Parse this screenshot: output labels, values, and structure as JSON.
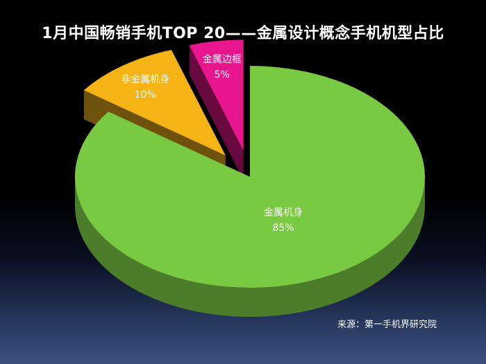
{
  "chart_data": {
    "type": "pie",
    "title": "1月中国畅销手机TOP 20——金属设计概念手机机型占比",
    "slices": [
      {
        "label": "金属机身",
        "value": 85,
        "display": "85%",
        "color": "#7ac943"
      },
      {
        "label": "非金属机身",
        "value": 10,
        "display": "10%",
        "color": "#f5b316"
      },
      {
        "label": "金属边框",
        "value": 5,
        "display": "5%",
        "color": "#e8168c"
      }
    ],
    "exploded": [
      "非金属机身",
      "金属边框"
    ],
    "three_d": true,
    "legend": "none",
    "source": "来源：第一手机界研究院"
  }
}
